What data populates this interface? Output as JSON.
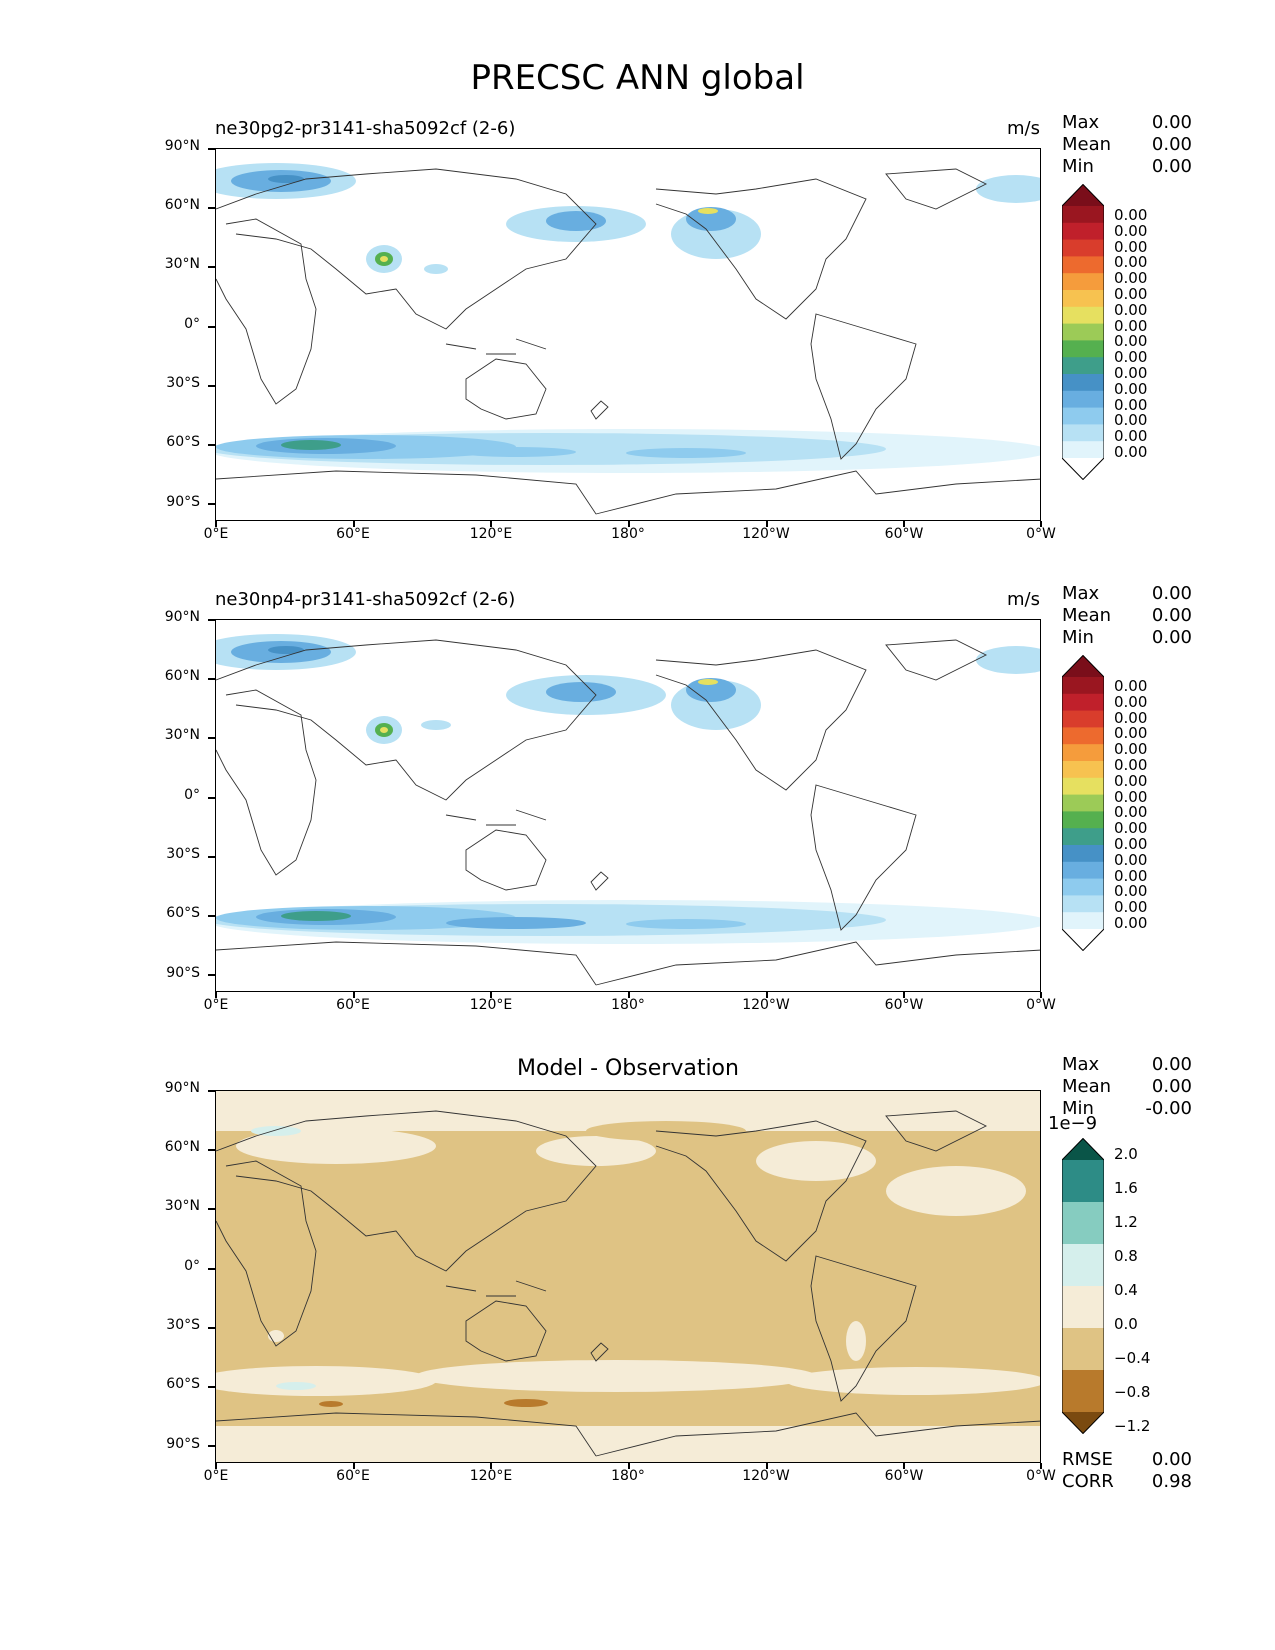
{
  "title": "PRECSC ANN global",
  "x_tick_labels": [
    "0°E",
    "60°E",
    "120°E",
    "180°",
    "120°W",
    "60°W",
    "0°W"
  ],
  "y_tick_labels": [
    "90°N",
    "60°N",
    "30°N",
    "0°",
    "30°S",
    "60°S",
    "90°S"
  ],
  "panels": [
    {
      "title_left": "ne30pg2-pr3141-sha5092cf (2-6)",
      "units": "m/s",
      "stats": [
        {
          "label": "Max",
          "value": "0.00"
        },
        {
          "label": "Mean",
          "value": "0.00"
        },
        {
          "label": "Min",
          "value": "0.00"
        }
      ],
      "colorbar_labels": [
        "0.00",
        "0.00",
        "0.00",
        "0.00",
        "0.00",
        "0.00",
        "0.00",
        "0.00",
        "0.00",
        "0.00",
        "0.00",
        "0.00",
        "0.00",
        "0.00",
        "0.00",
        "0.00"
      ]
    },
    {
      "title_left": "ne30np4-pr3141-sha5092cf (2-6)",
      "units": "m/s",
      "stats": [
        {
          "label": "Max",
          "value": "0.00"
        },
        {
          "label": "Mean",
          "value": "0.00"
        },
        {
          "label": "Min",
          "value": "0.00"
        }
      ],
      "colorbar_labels": [
        "0.00",
        "0.00",
        "0.00",
        "0.00",
        "0.00",
        "0.00",
        "0.00",
        "0.00",
        "0.00",
        "0.00",
        "0.00",
        "0.00",
        "0.00",
        "0.00",
        "0.00",
        "0.00"
      ]
    },
    {
      "title_center": "Model - Observation",
      "stats": [
        {
          "label": "Max",
          "value": "0.00"
        },
        {
          "label": "Mean",
          "value": "0.00"
        },
        {
          "label": "Min",
          "value": "-0.00"
        }
      ],
      "colorbar_exponent": "1e−9",
      "colorbar_labels": [
        "2.0",
        "1.6",
        "1.2",
        "0.8",
        "0.4",
        "0.0",
        "−0.4",
        "−0.8",
        "−1.2"
      ],
      "bottom_stats": [
        {
          "label": "RMSE",
          "value": "0.00"
        },
        {
          "label": "CORR",
          "value": "0.98"
        }
      ]
    }
  ],
  "colors": {
    "precip_scale": [
      "#ffffff",
      "#e1f4fb",
      "#b7e1f4",
      "#8ecbee",
      "#68aee0",
      "#4691c6",
      "#3e9e8a",
      "#55b04f",
      "#9ccb57",
      "#e6e060",
      "#f7c250",
      "#f59c3c",
      "#ed6a2e",
      "#d93d2c",
      "#c0202b",
      "#9a1620",
      "#7a0e1a"
    ],
    "diff_scale": [
      "#7a4a10",
      "#b87a2c",
      "#dfc384",
      "#f5ecd7",
      "#d5efec",
      "#86ccc0",
      "#2d8c86",
      "#0a5548"
    ],
    "coast": "#333333"
  }
}
